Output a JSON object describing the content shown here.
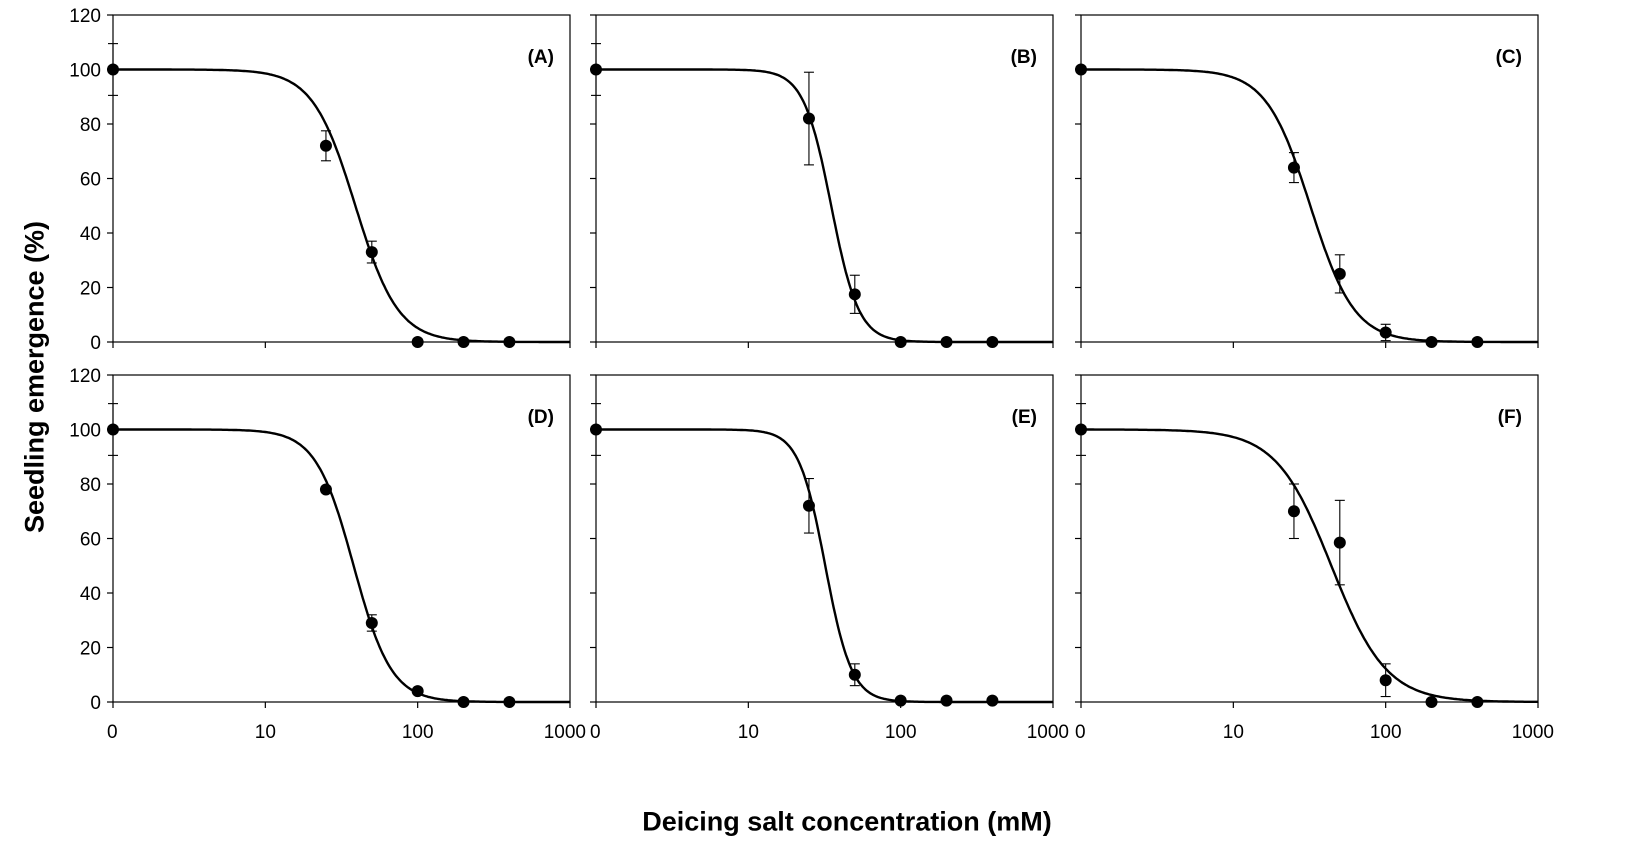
{
  "figure": {
    "ylabel": "Seedling emergence (%)",
    "xlabel": "Deicing salt concentration (mM)"
  },
  "chart_data": [
    {
      "type": "scatter",
      "panel_label": "(A)",
      "x_ticks": [
        "0",
        "10",
        "100",
        "1000"
      ],
      "y_ticks": [
        "0",
        "20",
        "40",
        "60",
        "80",
        "100",
        "120"
      ],
      "xlim": [
        0,
        1000
      ],
      "x_scale": "log",
      "ylim": [
        0,
        120
      ],
      "points": [
        {
          "x": 0,
          "y": 100,
          "err": 9.5
        },
        {
          "x": 25,
          "y": 72,
          "err": 5.5
        },
        {
          "x": 50,
          "y": 33,
          "err": 4
        },
        {
          "x": 100,
          "y": 0,
          "err": 0
        },
        {
          "x": 200,
          "y": 0,
          "err": 0
        },
        {
          "x": 400,
          "y": 0,
          "err": 0
        }
      ],
      "fit": {
        "top": 100,
        "ec50": 39,
        "hill": 3.1
      }
    },
    {
      "type": "scatter",
      "panel_label": "(B)",
      "x_ticks": [
        "0",
        "10",
        "100",
        "1000"
      ],
      "y_ticks": [
        "0",
        "20",
        "40",
        "60",
        "80",
        "100",
        "120"
      ],
      "xlim": [
        0,
        1000
      ],
      "x_scale": "log",
      "ylim": [
        0,
        120
      ],
      "points": [
        {
          "x": 0,
          "y": 100,
          "err": 9.5
        },
        {
          "x": 25,
          "y": 82,
          "err": 17
        },
        {
          "x": 50,
          "y": 17.5,
          "err": 7
        },
        {
          "x": 100,
          "y": 0,
          "err": 0
        },
        {
          "x": 200,
          "y": 0,
          "err": 0
        },
        {
          "x": 400,
          "y": 0,
          "err": 0
        }
      ],
      "fit": {
        "top": 100,
        "ec50": 35,
        "hill": 4.8
      }
    },
    {
      "type": "scatter",
      "panel_label": "(C)",
      "x_ticks": [
        "0",
        "10",
        "100",
        "1000"
      ],
      "y_ticks": [
        "0",
        "20",
        "40",
        "60",
        "80",
        "100",
        "120"
      ],
      "xlim": [
        0,
        1000
      ],
      "x_scale": "log",
      "ylim": [
        0,
        120
      ],
      "points": [
        {
          "x": 0,
          "y": 100,
          "err": 0
        },
        {
          "x": 25,
          "y": 64,
          "err": 5.5
        },
        {
          "x": 50,
          "y": 25,
          "err": 7
        },
        {
          "x": 100,
          "y": 3.5,
          "err": 3
        },
        {
          "x": 200,
          "y": 0,
          "err": 0
        },
        {
          "x": 400,
          "y": 0,
          "err": 0
        }
      ],
      "fit": {
        "top": 100,
        "ec50": 32,
        "hill": 3.0
      }
    },
    {
      "type": "scatter",
      "panel_label": "(D)",
      "x_ticks": [
        "0",
        "10",
        "100",
        "1000"
      ],
      "y_ticks": [
        "0",
        "20",
        "40",
        "60",
        "80",
        "100",
        "120"
      ],
      "xlim": [
        0,
        1000
      ],
      "x_scale": "log",
      "ylim": [
        0,
        120
      ],
      "points": [
        {
          "x": 0,
          "y": 100,
          "err": 9.5
        },
        {
          "x": 25,
          "y": 78,
          "err": 0
        },
        {
          "x": 50,
          "y": 29,
          "err": 3
        },
        {
          "x": 100,
          "y": 4,
          "err": 1
        },
        {
          "x": 200,
          "y": 0,
          "err": 0
        },
        {
          "x": 400,
          "y": 0,
          "err": 0
        }
      ],
      "fit": {
        "top": 100,
        "ec50": 38,
        "hill": 3.5
      }
    },
    {
      "type": "scatter",
      "panel_label": "(E)",
      "x_ticks": [
        "0",
        "10",
        "100",
        "1000"
      ],
      "y_ticks": [
        "0",
        "20",
        "40",
        "60",
        "80",
        "100",
        "120"
      ],
      "xlim": [
        0,
        1000
      ],
      "x_scale": "log",
      "ylim": [
        0,
        120
      ],
      "points": [
        {
          "x": 0,
          "y": 100,
          "err": 9.5
        },
        {
          "x": 25,
          "y": 72,
          "err": 10
        },
        {
          "x": 50,
          "y": 10,
          "err": 4
        },
        {
          "x": 100,
          "y": 0.5,
          "err": 0
        },
        {
          "x": 200,
          "y": 0.5,
          "err": 0
        },
        {
          "x": 400,
          "y": 0.5,
          "err": 0
        }
      ],
      "fit": {
        "top": 100,
        "ec50": 32,
        "hill": 5.0
      }
    },
    {
      "type": "scatter",
      "panel_label": "(F)",
      "x_ticks": [
        "0",
        "10",
        "100",
        "1000"
      ],
      "y_ticks": [
        "0",
        "20",
        "40",
        "60",
        "80",
        "100",
        "120"
      ],
      "xlim": [
        0,
        1000
      ],
      "x_scale": "log",
      "ylim": [
        0,
        120
      ],
      "points": [
        {
          "x": 0,
          "y": 100,
          "err": 9.5
        },
        {
          "x": 25,
          "y": 70,
          "err": 10
        },
        {
          "x": 50,
          "y": 58.5,
          "err": 15.5
        },
        {
          "x": 100,
          "y": 8,
          "err": 6
        },
        {
          "x": 200,
          "y": 0,
          "err": 0
        },
        {
          "x": 400,
          "y": 0,
          "err": 0
        }
      ],
      "fit": {
        "top": 100,
        "ec50": 44,
        "hill": 2.4
      }
    }
  ]
}
